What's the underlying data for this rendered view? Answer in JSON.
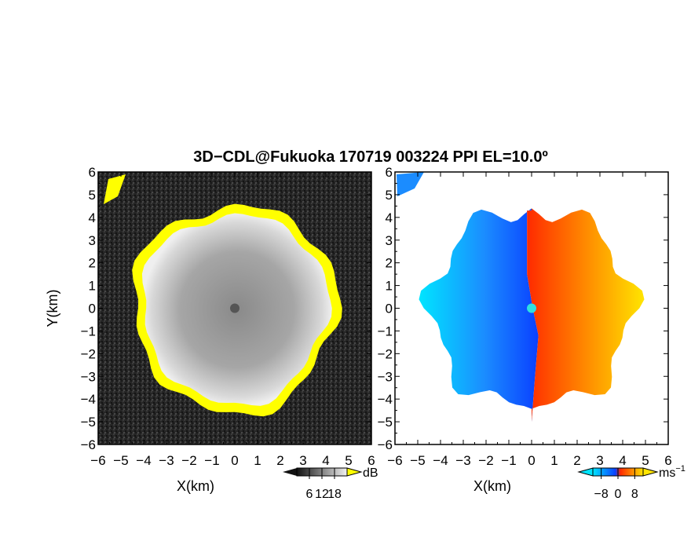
{
  "title": "3D−CDL@Fukuoka 170719 003224 PPI EL=10.0º",
  "colors": {
    "background": "#ffffff",
    "axis": "#000000",
    "snr_fill_dark": "#1f1f1f",
    "snr_fill_mid": "#9a9a9a",
    "snr_highlight": "#ffff00",
    "vel_negative_light": "#00e5ff",
    "vel_negative_dark": "#0a40ff",
    "vel_positive_dark": "#ff2a00",
    "vel_positive_light": "#ffe500",
    "radar_marker": "#2fe0e0"
  },
  "chart_data": [
    {
      "type": "heatmap",
      "name": "snr-ppi",
      "xlabel": "X(km)",
      "ylabel": "Y(km)",
      "xlim": [
        -6,
        6
      ],
      "ylim": [
        -6,
        6
      ],
      "xticks": [
        "−6",
        "−5",
        "−4",
        "−3",
        "−2",
        "−1",
        "0",
        "1",
        "2",
        "3",
        "4",
        "5",
        "6"
      ],
      "yticks": [
        "6",
        "5",
        "4",
        "3",
        "2",
        "1",
        "0",
        "−1",
        "−2",
        "−3",
        "−4",
        "−5",
        "−6"
      ],
      "echo_radius_km": 4.0,
      "colorbar": {
        "unit": "dB",
        "tick_labels": [
          "6",
          "12",
          "18"
        ],
        "ticks": [
          6,
          12,
          18
        ],
        "range": [
          0,
          24
        ]
      }
    },
    {
      "type": "heatmap",
      "name": "doppler-velocity-ppi",
      "xlabel": "X(km)",
      "xlim": [
        -6,
        6
      ],
      "ylim": [
        -6,
        6
      ],
      "xticks": [
        "−6",
        "−5",
        "−4",
        "−3",
        "−2",
        "−1",
        "0",
        "1",
        "2",
        "3",
        "4",
        "5",
        "6"
      ],
      "yticks": [
        "6",
        "5",
        "4",
        "3",
        "2",
        "1",
        "0",
        "−1",
        "−2",
        "−3",
        "−4",
        "−5",
        "−6"
      ],
      "colorbar": {
        "unit": "ms",
        "unit_exp": "−1",
        "tick_labels": [
          "−8",
          "0",
          "8"
        ],
        "ticks": [
          -8,
          0,
          8
        ],
        "range": [
          -12,
          12
        ]
      }
    }
  ]
}
